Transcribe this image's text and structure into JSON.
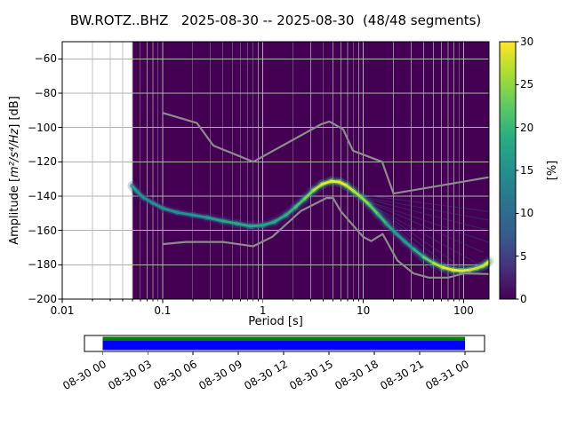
{
  "figure": {
    "title": "BW.ROTZ..BHZ   2025-08-30 -- 2025-08-30  (48/48 segments)",
    "xlabel": "Period [s]",
    "ylabel": {
      "prefix": "Amplitude [",
      "math": "m²/s⁴/Hz",
      "suffix": "] [dB]"
    },
    "colorbar_label": "[%]"
  },
  "chart_data": {
    "type": "heatmap",
    "title": "BW.ROTZ..BHZ 2025-08-30 -- 2025-08-30 (48/48 segments)",
    "station": "BW.ROTZ..BHZ",
    "date_range": "2025-08-30 -- 2025-08-30",
    "segments_used": "48/48",
    "xlabel": "Period [s]",
    "ylabel": "Amplitude [m²/s⁴/Hz] [dB]",
    "x_axis": {
      "scale": "log",
      "min": 0.01,
      "max": 179,
      "ticks": [
        0.01,
        0.1,
        1,
        10,
        100
      ],
      "tick_labels": [
        "0.01",
        "0.1",
        "1",
        "10",
        "100"
      ]
    },
    "y_axis": {
      "min": -200,
      "max": -50,
      "ticks": [
        -60,
        -80,
        -100,
        -120,
        -140,
        -160,
        -180,
        -200
      ],
      "tick_labels": [
        "−60",
        "−80",
        "−100",
        "−120",
        "−140",
        "−160",
        "−180",
        "−200"
      ]
    },
    "colorbar": {
      "label": "[%]",
      "min": 0,
      "max": 30,
      "ticks": [
        0,
        5,
        10,
        15,
        20,
        25,
        30
      ],
      "tick_labels": [
        "0",
        "5",
        "10",
        "15",
        "20",
        "25",
        "30"
      ],
      "colormap": "viridis",
      "stops": [
        [
          0.0,
          "#440154"
        ],
        [
          0.125,
          "#46327e"
        ],
        [
          0.25,
          "#365c8d"
        ],
        [
          0.375,
          "#2b748e"
        ],
        [
          0.5,
          "#21918c"
        ],
        [
          0.625,
          "#27ad81"
        ],
        [
          0.75,
          "#5ec962"
        ],
        [
          0.875,
          "#aadc32"
        ],
        [
          1.0,
          "#fde725"
        ]
      ]
    },
    "grid": {
      "on": true,
      "color": "#b0b0b0"
    },
    "histogram": {
      "zero_color": "#440154",
      "period_range": [
        0.05,
        179
      ],
      "mode_curve_period_db_level": [
        [
          0.05,
          -134,
          0.62
        ],
        [
          0.055,
          -137,
          0.55
        ],
        [
          0.065,
          -141,
          0.5
        ],
        [
          0.08,
          -144,
          0.5
        ],
        [
          0.1,
          -147,
          0.52
        ],
        [
          0.14,
          -149.5,
          0.5
        ],
        [
          0.2,
          -151,
          0.52
        ],
        [
          0.28,
          -152.5,
          0.55
        ],
        [
          0.4,
          -154.5,
          0.6
        ],
        [
          0.55,
          -156,
          0.62
        ],
        [
          0.75,
          -157.5,
          0.62
        ],
        [
          1.0,
          -157,
          0.6
        ],
        [
          1.3,
          -155,
          0.6
        ],
        [
          1.7,
          -151,
          0.62
        ],
        [
          2.1,
          -146.5,
          0.68
        ],
        [
          2.6,
          -141.5,
          0.75
        ],
        [
          3.2,
          -136.5,
          0.88
        ],
        [
          3.9,
          -133,
          0.97
        ],
        [
          4.8,
          -131.3,
          1.0
        ],
        [
          5.8,
          -131.8,
          1.0
        ],
        [
          6.8,
          -133.8,
          0.97
        ],
        [
          8.0,
          -137,
          0.92
        ],
        [
          9.5,
          -140.5,
          0.88
        ],
        [
          11.5,
          -145,
          0.82
        ],
        [
          14,
          -150.5,
          0.72
        ],
        [
          17,
          -156,
          0.62
        ],
        [
          21,
          -161.5,
          0.55
        ],
        [
          26,
          -166.5,
          0.55
        ],
        [
          32,
          -171,
          0.6
        ],
        [
          40,
          -175.5,
          0.7
        ],
        [
          50,
          -179,
          0.85
        ],
        [
          62,
          -181.5,
          0.95
        ],
        [
          78,
          -183,
          1.0
        ],
        [
          95,
          -183.5,
          1.0
        ],
        [
          115,
          -183,
          0.95
        ],
        [
          135,
          -182,
          0.92
        ],
        [
          155,
          -180.8,
          0.92
        ],
        [
          168,
          -179.5,
          0.95
        ],
        [
          179,
          -178,
          1.0
        ]
      ],
      "fan_lines_period_db": [
        [
          9,
          -139,
          179,
          -149
        ],
        [
          9,
          -140,
          179,
          -154
        ],
        [
          10,
          -141,
          179,
          -160
        ],
        [
          10,
          -142,
          179,
          -167
        ],
        [
          11,
          -143,
          160,
          -173
        ],
        [
          11,
          -144,
          135,
          -179
        ],
        [
          12,
          -145,
          110,
          -184
        ],
        [
          13,
          -147,
          90,
          -186
        ],
        [
          14,
          -149,
          70,
          -186
        ],
        [
          15,
          -151,
          55,
          -185
        ],
        [
          17,
          -155,
          45,
          -183
        ]
      ]
    },
    "noise_models": {
      "color": "#8c8c8c",
      "high_noise_model_period_db": [
        [
          0.1,
          -91.5
        ],
        [
          0.22,
          -97.4
        ],
        [
          0.32,
          -110.5
        ],
        [
          0.8,
          -120.0
        ],
        [
          3.8,
          -98.1
        ],
        [
          4.6,
          -96.5
        ],
        [
          6.3,
          -101.0
        ],
        [
          7.9,
          -113.5
        ],
        [
          15.4,
          -120.0
        ],
        [
          20.0,
          -138.5
        ],
        [
          50,
          -134.5
        ],
        [
          100,
          -131.5
        ],
        [
          179,
          -129.0
        ]
      ],
      "low_noise_model_period_db": [
        [
          0.1,
          -168.0
        ],
        [
          0.17,
          -166.7
        ],
        [
          0.4,
          -166.7
        ],
        [
          0.8,
          -169.2
        ],
        [
          1.24,
          -163.7
        ],
        [
          2.4,
          -148.6
        ],
        [
          4.3,
          -141.1
        ],
        [
          5.0,
          -141.1
        ],
        [
          6.0,
          -149.0
        ],
        [
          10.0,
          -163.8
        ],
        [
          12.0,
          -166.2
        ],
        [
          15.6,
          -162.1
        ],
        [
          21.9,
          -177.5
        ],
        [
          31.6,
          -185.0
        ],
        [
          45.0,
          -187.5
        ],
        [
          70.0,
          -187.5
        ],
        [
          101.0,
          -185.0
        ],
        [
          179.0,
          -185.4
        ]
      ]
    },
    "coverage": {
      "tick_labels": [
        "08-30 00",
        "08-30 03",
        "08-30 06",
        "08-30 09",
        "08-30 12",
        "08-30 15",
        "08-30 18",
        "08-30 21",
        "08-31 00"
      ],
      "bar_top_color": "#008000",
      "bar_bottom_color": "#0000ff",
      "data_span_frac": [
        0.045,
        0.951
      ]
    }
  }
}
